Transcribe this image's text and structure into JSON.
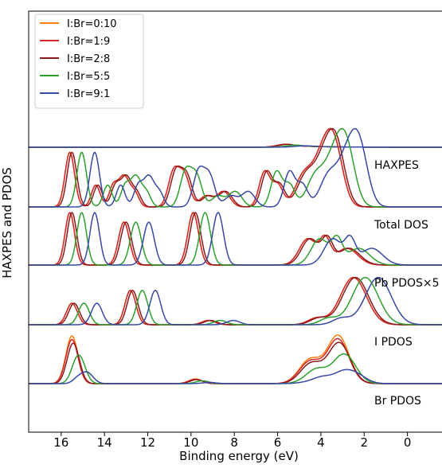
{
  "chart_data": {
    "type": "line",
    "title": "",
    "xlabel": "Binding energy (eV)",
    "ylabel": "HAXPES and PDOS",
    "xlim": [
      17.5,
      -2.0
    ],
    "x_reversed": true,
    "x_ticks": [
      16,
      14,
      12,
      10,
      8,
      6,
      4,
      2,
      0
    ],
    "y_ticks_shown": false,
    "grid": false,
    "legend_position": "top-left",
    "panels": [
      {
        "id": "haxpes",
        "label": "HAXPES"
      },
      {
        "id": "total_dos",
        "label": "Total DOS"
      },
      {
        "id": "pb_pdos",
        "label": "Pb PDOS×5"
      },
      {
        "id": "i_pdos",
        "label": "I PDOS"
      },
      {
        "id": "br_pdos",
        "label": "Br PDOS"
      }
    ],
    "series": [
      {
        "name": "I:Br=0:10",
        "color": "#ff7f0e",
        "shift": 0.0,
        "i_frac": 0.0
      },
      {
        "name": "I:Br=1:9",
        "color": "#d62728",
        "shift": 0.0,
        "i_frac": 0.1
      },
      {
        "name": "I:Br=2:8",
        "color": "#8c1a1a",
        "shift": -0.1,
        "i_frac": 0.2
      },
      {
        "name": "I:Br=5:5",
        "color": "#2ca02c",
        "shift": -0.55,
        "i_frac": 0.5
      },
      {
        "name": "I:Br=9:1",
        "color": "#3748a5",
        "shift": -1.15,
        "i_frac": 0.9
      }
    ]
  }
}
